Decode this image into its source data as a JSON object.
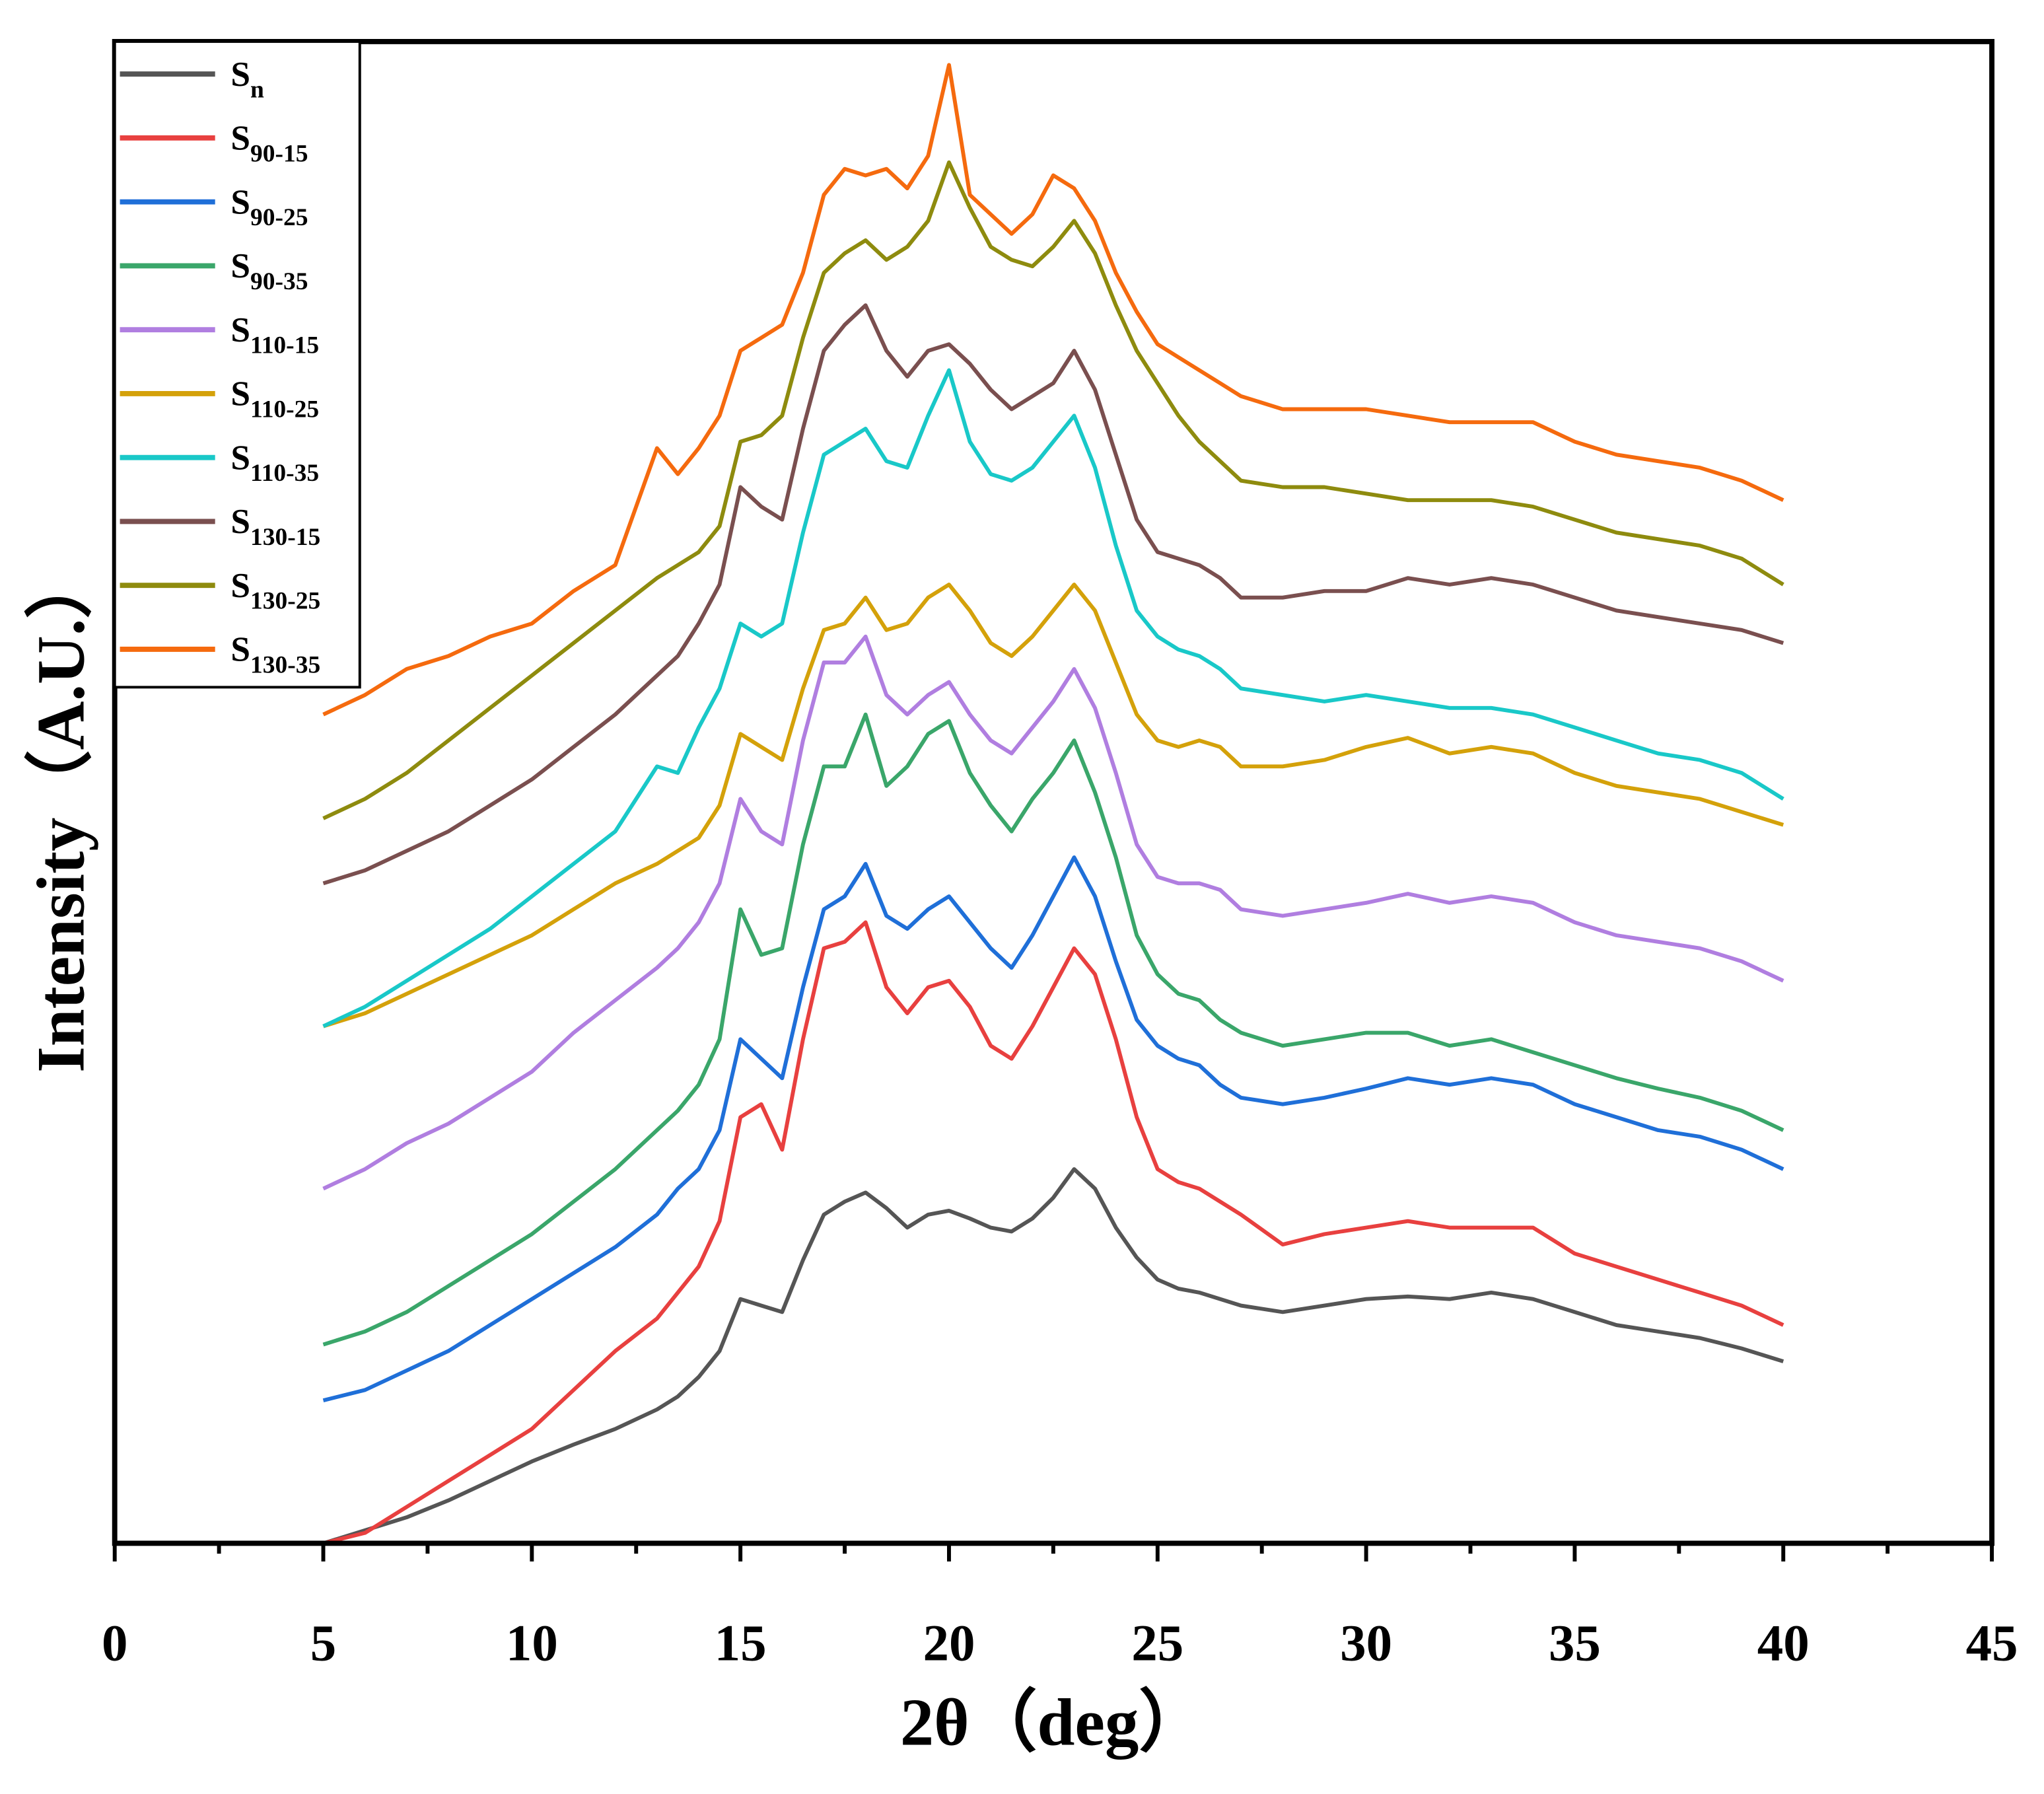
{
  "chart_data": {
    "type": "line",
    "x_label": "2θ（deg）",
    "y_label": "Intensity（A.U.）",
    "xlim": [
      0,
      45
    ],
    "xticks": [
      0,
      5,
      10,
      15,
      20,
      25,
      30,
      35,
      40,
      45
    ],
    "xminorticks": [
      2.5,
      7.5,
      12.5,
      17.5,
      22.5,
      27.5,
      32.5,
      37.5,
      42.5
    ],
    "ylim": [
      0,
      1156
    ],
    "legend": "upper left",
    "x": [
      5,
      6,
      7,
      8,
      9,
      10,
      11,
      12,
      13,
      13.5,
      14,
      14.5,
      15,
      15.5,
      16,
      16.5,
      17,
      17.5,
      18,
      18.5,
      19,
      19.5,
      20,
      20.5,
      21,
      21.5,
      22,
      22.5,
      23,
      23.5,
      24,
      24.5,
      25,
      25.5,
      26,
      26.5,
      27,
      28,
      29,
      30,
      31,
      32,
      33,
      34,
      35,
      36,
      37,
      38,
      39,
      40
    ],
    "series": [
      {
        "name": "Sn",
        "color": "#555555",
        "values": [
          0,
          10,
          20,
          33,
          48,
          63,
          76,
          88,
          103,
          113,
          128,
          148,
          188,
          183,
          178,
          218,
          253,
          263,
          270,
          258,
          243,
          253,
          256,
          250,
          243,
          240,
          250,
          266,
          288,
          273,
          243,
          220,
          203,
          196,
          193,
          188,
          183,
          178,
          183,
          188,
          190,
          188,
          193,
          188,
          178,
          168,
          163,
          158,
          150,
          140
        ]
      },
      {
        "name": "S90-15",
        "color": "#e8403f",
        "values": [
          0,
          8,
          28,
          48,
          68,
          88,
          118,
          148,
          173,
          193,
          213,
          248,
          328,
          338,
          303,
          388,
          458,
          463,
          478,
          428,
          408,
          428,
          433,
          413,
          383,
          373,
          398,
          428,
          458,
          438,
          388,
          328,
          288,
          278,
          273,
          263,
          253,
          230,
          238,
          243,
          248,
          243,
          243,
          243,
          223,
          213,
          203,
          193,
          183,
          168
        ]
      },
      {
        "name": "S90-25",
        "color": "#1f6fd8",
        "values": [
          110,
          118,
          133,
          148,
          168,
          188,
          208,
          228,
          253,
          273,
          288,
          318,
          388,
          373,
          358,
          428,
          488,
          498,
          523,
          483,
          473,
          488,
          498,
          478,
          458,
          443,
          468,
          498,
          528,
          498,
          448,
          403,
          383,
          373,
          368,
          353,
          343,
          338,
          343,
          350,
          358,
          353,
          358,
          353,
          338,
          328,
          318,
          313,
          303,
          288
        ]
      },
      {
        "name": "S90-35",
        "color": "#3aa66a",
        "values": [
          153,
          163,
          178,
          198,
          218,
          238,
          263,
          288,
          318,
          333,
          353,
          388,
          488,
          453,
          458,
          538,
          598,
          598,
          638,
          583,
          598,
          623,
          633,
          593,
          568,
          548,
          573,
          593,
          618,
          578,
          528,
          468,
          438,
          423,
          418,
          403,
          393,
          383,
          388,
          393,
          393,
          383,
          388,
          378,
          368,
          358,
          350,
          343,
          333,
          318
        ]
      },
      {
        "name": "S110-15",
        "color": "#b07ee0",
        "values": [
          273,
          288,
          308,
          323,
          343,
          363,
          393,
          418,
          443,
          458,
          478,
          508,
          573,
          548,
          538,
          618,
          678,
          678,
          698,
          653,
          638,
          653,
          663,
          638,
          618,
          608,
          628,
          648,
          673,
          643,
          593,
          538,
          513,
          508,
          508,
          503,
          488,
          483,
          488,
          493,
          500,
          493,
          498,
          493,
          478,
          468,
          463,
          458,
          448,
          433
        ]
      },
      {
        "name": "S110-25",
        "color": "#d4a10a",
        "values": [
          398,
          408,
          423,
          438,
          453,
          468,
          488,
          508,
          523,
          533,
          543,
          568,
          623,
          613,
          603,
          658,
          703,
          708,
          728,
          703,
          708,
          728,
          738,
          718,
          693,
          683,
          698,
          718,
          738,
          718,
          678,
          638,
          618,
          613,
          618,
          613,
          598,
          598,
          603,
          613,
          620,
          608,
          613,
          608,
          593,
          583,
          578,
          573,
          563,
          553
        ]
      },
      {
        "name": "S110-35",
        "color": "#19c8c8",
        "values": [
          398,
          413,
          433,
          453,
          473,
          498,
          523,
          548,
          598,
          593,
          628,
          658,
          708,
          698,
          708,
          778,
          838,
          848,
          858,
          833,
          828,
          868,
          903,
          848,
          823,
          818,
          828,
          848,
          868,
          828,
          768,
          718,
          698,
          688,
          683,
          673,
          658,
          653,
          648,
          653,
          648,
          643,
          643,
          638,
          628,
          618,
          608,
          603,
          593,
          573
        ]
      },
      {
        "name": "S130-15",
        "color": "#7a4f4f",
        "values": [
          508,
          518,
          533,
          548,
          568,
          588,
          613,
          638,
          668,
          683,
          708,
          738,
          813,
          798,
          788,
          858,
          918,
          938,
          953,
          918,
          898,
          918,
          923,
          908,
          888,
          873,
          883,
          893,
          918,
          888,
          838,
          788,
          763,
          758,
          753,
          743,
          728,
          728,
          733,
          733,
          743,
          738,
          743,
          738,
          728,
          718,
          713,
          708,
          703,
          693
        ]
      },
      {
        "name": "S130-25",
        "color": "#8e8b0e",
        "values": [
          558,
          573,
          593,
          618,
          643,
          668,
          693,
          718,
          743,
          753,
          763,
          783,
          848,
          853,
          868,
          928,
          978,
          993,
          1003,
          988,
          998,
          1018,
          1063,
          1028,
          998,
          988,
          983,
          998,
          1018,
          993,
          953,
          918,
          893,
          868,
          848,
          833,
          818,
          813,
          813,
          808,
          803,
          803,
          803,
          798,
          788,
          778,
          773,
          768,
          758,
          738
        ]
      },
      {
        "name": "S130-35",
        "color": "#f56a0e",
        "values": [
          638,
          653,
          673,
          683,
          698,
          708,
          733,
          753,
          843,
          823,
          843,
          868,
          918,
          928,
          938,
          978,
          1038,
          1058,
          1053,
          1058,
          1043,
          1068,
          1138,
          1038,
          1023,
          1008,
          1023,
          1053,
          1043,
          1018,
          978,
          948,
          923,
          913,
          903,
          893,
          883,
          873,
          873,
          873,
          868,
          863,
          863,
          863,
          848,
          838,
          833,
          828,
          818,
          803
        ]
      }
    ]
  }
}
